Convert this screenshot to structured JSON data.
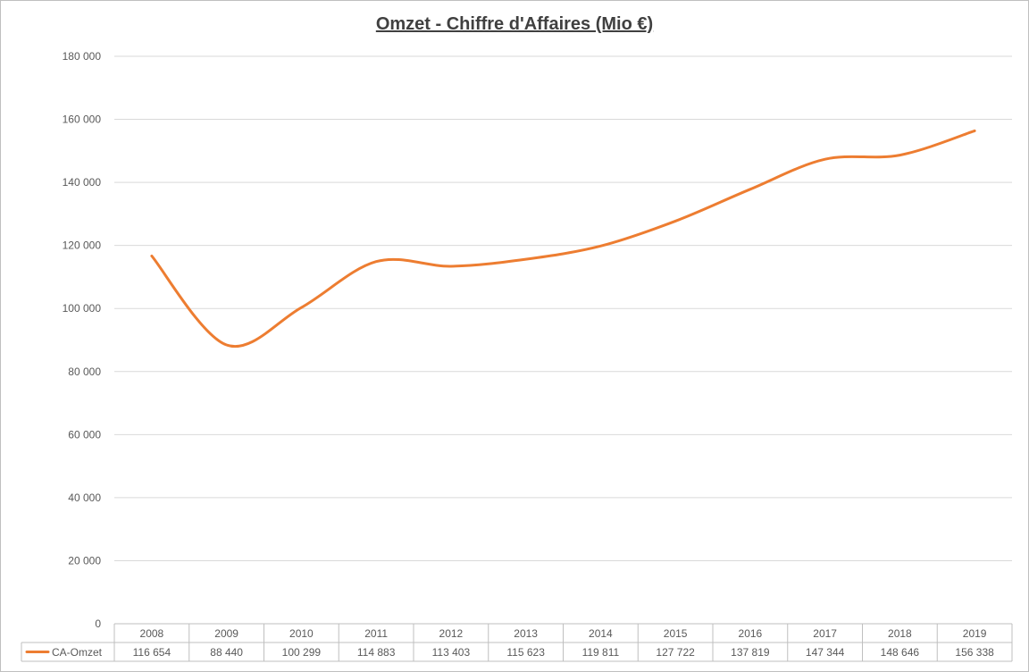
{
  "chart_data": {
    "type": "line",
    "title": "Omzet - Chiffre d'Affaires (Mio €)",
    "xlabel": "",
    "ylabel": "",
    "categories": [
      "2008",
      "2009",
      "2010",
      "2011",
      "2012",
      "2013",
      "2014",
      "2015",
      "2016",
      "2017",
      "2018",
      "2019"
    ],
    "series": [
      {
        "name": "CA-Omzet",
        "values": [
          116654,
          88440,
          100299,
          114883,
          113403,
          115623,
          119811,
          127722,
          137819,
          147344,
          148646,
          156338
        ],
        "value_labels": [
          "116 654",
          "88 440",
          "100 299",
          "114 883",
          "113 403",
          "115 623",
          "119 811",
          "127 722",
          "137 819",
          "147 344",
          "148 646",
          "156 338"
        ],
        "color": "#ED7D31"
      }
    ],
    "ylim": [
      0,
      180000
    ],
    "yticks": [
      0,
      20000,
      40000,
      60000,
      80000,
      100000,
      120000,
      140000,
      160000,
      180000
    ],
    "ytick_labels": [
      "0",
      "20 000",
      "40 000",
      "60 000",
      "80 000",
      "100 000",
      "120 000",
      "140 000",
      "160 000",
      "180 000"
    ],
    "grid": true,
    "legend": "data-table",
    "smooth": true,
    "gridline_color": "#d9d9d9",
    "table_border_color": "#bfbfbf",
    "text_color": "#595959"
  }
}
